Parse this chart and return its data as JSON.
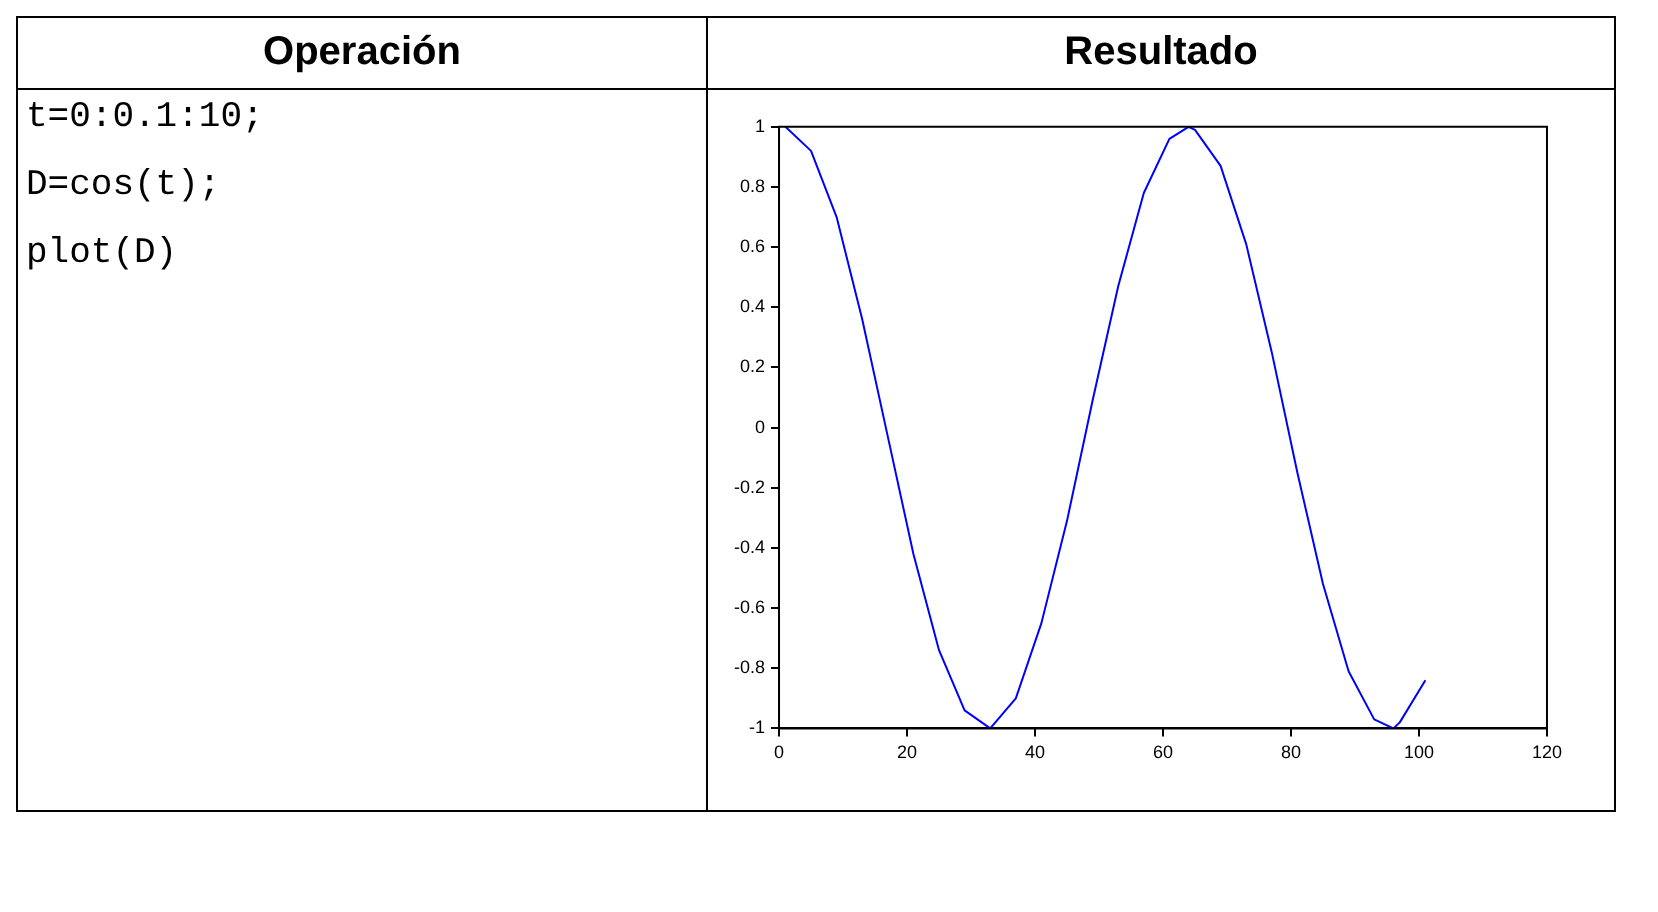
{
  "chart_data": {
    "type": "line",
    "annotations": [
      "Operación",
      "Resultado",
      "t=0:0.1:10;",
      "D=cos(t);",
      "plot(D)"
    ],
    "x": [
      1,
      5,
      9,
      13,
      17,
      21,
      25,
      29,
      33,
      37,
      41,
      45,
      49,
      53,
      57,
      61,
      64,
      65,
      69,
      73,
      77,
      81,
      85,
      89,
      93,
      96,
      97,
      101
    ],
    "series": [
      {
        "color": "#0000ff",
        "values": [
          1.0,
          0.92,
          0.7,
          0.36,
          -0.03,
          -0.42,
          -0.74,
          -0.94,
          -1.0,
          -0.9,
          -0.65,
          -0.31,
          0.09,
          0.47,
          0.78,
          0.96,
          1.0,
          0.99,
          0.87,
          0.61,
          0.25,
          -0.15,
          -0.52,
          -0.81,
          -0.97,
          -1.0,
          -0.98,
          -0.84
        ]
      }
    ],
    "xlim": [
      0,
      120
    ],
    "xticks": [
      0,
      20,
      40,
      60,
      80,
      100,
      120
    ],
    "ylim": [
      -1,
      1
    ],
    "yticks": [
      -1,
      -0.8,
      -0.6,
      -0.4,
      -0.2,
      0,
      0.2,
      0.4,
      0.6,
      0.8,
      1
    ],
    "grid": false,
    "legend": false,
    "marker": "none",
    "line_style": "solid"
  }
}
